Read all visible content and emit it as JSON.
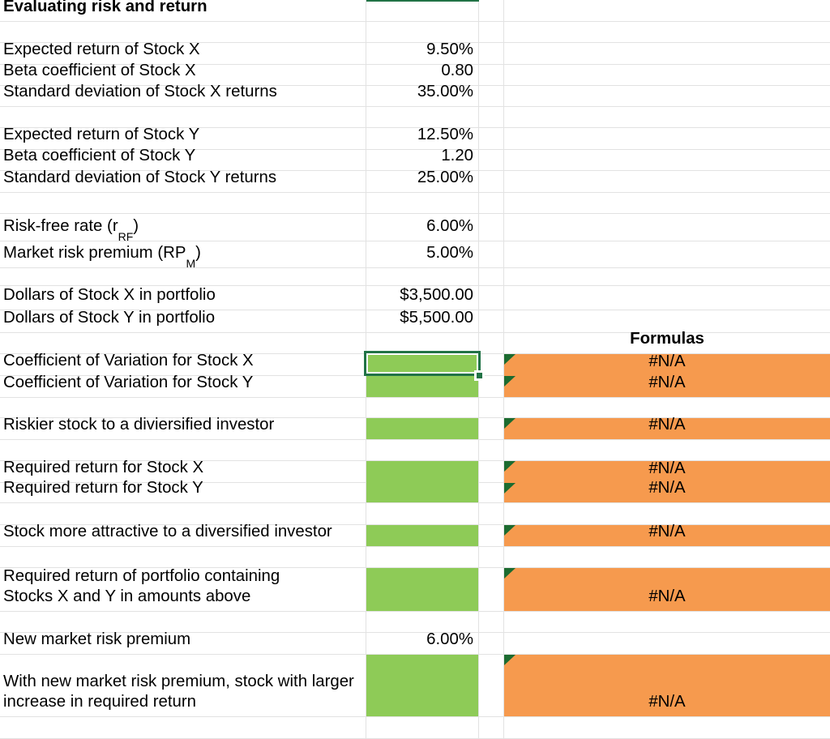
{
  "colors": {
    "input_fill_green": "#8ecb57",
    "formula_fill_orange": "#f69a4e",
    "selection_green": "#217346",
    "comment_marker_green": "#1c6b30"
  },
  "na_value": "#N/A",
  "formulas_header": "Formulas",
  "rows": [
    {
      "type": "title",
      "label": "Evaluating risk and return"
    },
    {
      "type": "blank"
    },
    {
      "type": "data",
      "label": "Expected return of Stock X",
      "value": "9.50%"
    },
    {
      "type": "data",
      "label": "Beta coefficient of Stock X",
      "value": "0.80"
    },
    {
      "type": "data",
      "label": "Standard deviation of Stock X returns",
      "value": "35.00%"
    },
    {
      "type": "blank"
    },
    {
      "type": "data",
      "label": "Expected return of Stock Y",
      "value": "12.50%"
    },
    {
      "type": "data",
      "label": "Beta coefficient of Stock Y",
      "value": "1.20"
    },
    {
      "type": "data",
      "label": "Standard deviation of Stock Y returns",
      "value": "25.00%"
    },
    {
      "type": "blank"
    },
    {
      "type": "data",
      "label": "Risk-free rate (r",
      "sub": "RF",
      "label_after": ")",
      "value": "6.00%"
    },
    {
      "type": "data",
      "label": "Market risk premium (RP",
      "sub": "M",
      "label_after": ")",
      "value": "5.00%"
    },
    {
      "type": "blank"
    },
    {
      "type": "data",
      "label": "Dollars of Stock X in portfolio",
      "value": "$3,500.00"
    },
    {
      "type": "data",
      "label": "Dollars of Stock Y in portfolio",
      "value": "$5,500.00"
    },
    {
      "type": "header"
    },
    {
      "type": "input",
      "label": "Coefficient of Variation for Stock X",
      "na": "#N/A",
      "selected": true
    },
    {
      "type": "input",
      "label": "Coefficient of Variation for Stock Y",
      "na": "#N/A"
    },
    {
      "type": "blank"
    },
    {
      "type": "input",
      "label": "Riskier stock to a diviersified investor",
      "na": "#N/A"
    },
    {
      "type": "blank"
    },
    {
      "type": "input",
      "label": "Required return for Stock X",
      "na": "#N/A"
    },
    {
      "type": "input",
      "label": "Required return for Stock Y",
      "na": "#N/A"
    },
    {
      "type": "blank"
    },
    {
      "type": "input",
      "label": "Stock more attractive to a diversified investor",
      "na": "#N/A"
    },
    {
      "type": "blank"
    },
    {
      "type": "input",
      "label": "Required return of portfolio containing\nStocks X and Y in amounts above",
      "na": "#N/A"
    },
    {
      "type": "blank"
    },
    {
      "type": "data",
      "label": "New market risk premium",
      "value": "6.00%"
    },
    {
      "type": "input",
      "label": "With new market risk premium, stock with larger\nincrease in required return",
      "na": "#N/A"
    },
    {
      "type": "blank"
    }
  ]
}
